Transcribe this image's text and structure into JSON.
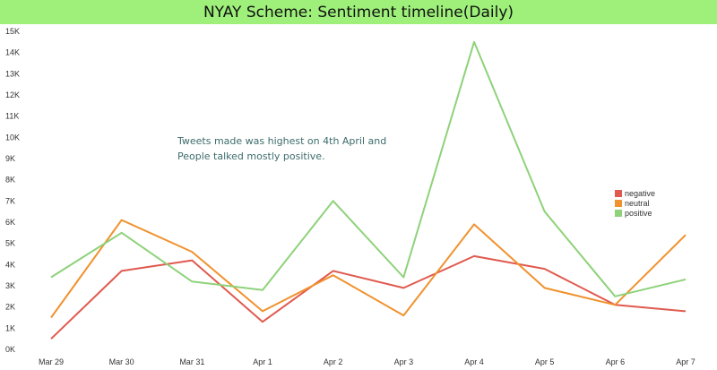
{
  "chart_data": {
    "type": "line",
    "title": "NYAY Scheme: Sentiment timeline(Daily)",
    "categories": [
      "Mar 29",
      "Mar 30",
      "Mar 31",
      "Apr 1",
      "Apr 2",
      "Apr 3",
      "Apr 4",
      "Apr 5",
      "Apr 6",
      "Apr 7"
    ],
    "ylim": [
      0,
      15000
    ],
    "yticks": [
      0,
      1000,
      2000,
      3000,
      4000,
      5000,
      6000,
      7000,
      8000,
      9000,
      10000,
      11000,
      12000,
      13000,
      14000,
      15000
    ],
    "ytick_labels": [
      "0K",
      "1K",
      "2K",
      "3K",
      "4K",
      "5K",
      "6K",
      "7K",
      "8K",
      "9K",
      "10K",
      "11K",
      "12K",
      "13K",
      "14K",
      "15K"
    ],
    "grid": false,
    "legend_position": "right",
    "series": [
      {
        "name": "negative",
        "color": "#e05a4f",
        "values": [
          500,
          3700,
          4200,
          1300,
          3700,
          2900,
          4400,
          3800,
          2100,
          1800
        ]
      },
      {
        "name": "neutral",
        "color": "#f0922e",
        "values": [
          1500,
          6100,
          4600,
          1800,
          3500,
          1600,
          5900,
          2900,
          2100,
          5400
        ]
      },
      {
        "name": "positive",
        "color": "#8ed27a",
        "values": [
          3400,
          5500,
          3200,
          2800,
          7000,
          3400,
          14500,
          6500,
          2500,
          3300
        ]
      }
    ],
    "annotation": [
      "Tweets made was highest on 4th April and",
      "People talked mostly positive."
    ]
  }
}
